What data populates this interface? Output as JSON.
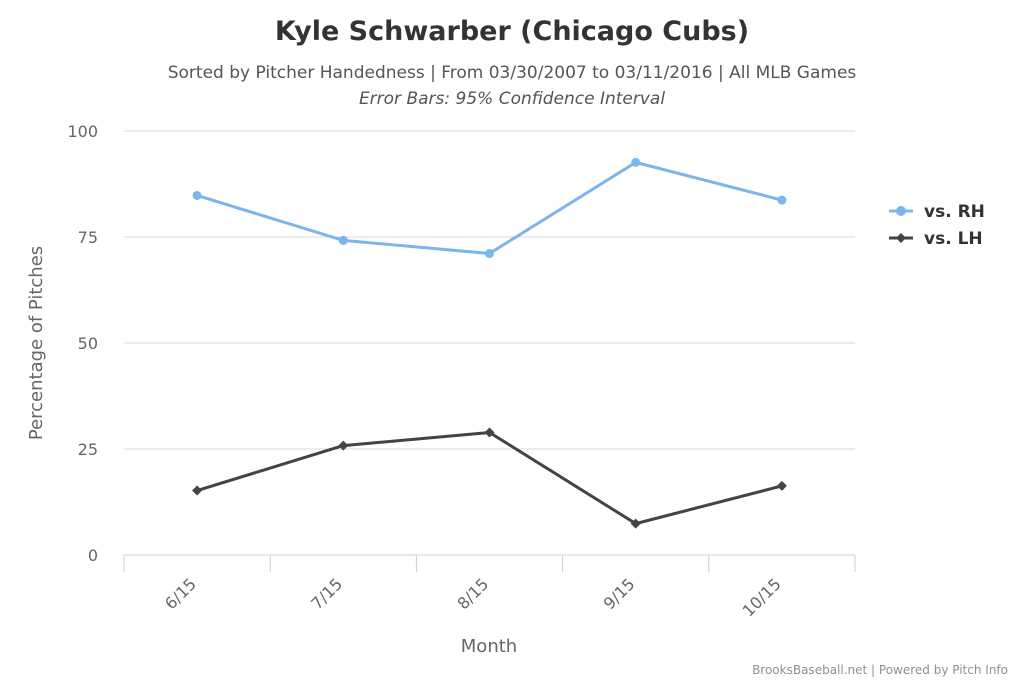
{
  "chart_data": {
    "type": "line",
    "title": "Kyle Schwarber (Chicago Cubs)",
    "subtitle": "Sorted by Pitcher Handedness | From 03/30/2007 to 03/11/2016 | All MLB Games",
    "subtitle2": "Error Bars: 95% Confidence Interval",
    "xlabel": "Month",
    "ylabel": "Percentage of Pitches",
    "categories": [
      "6/15",
      "7/15",
      "8/15",
      "9/15",
      "10/15"
    ],
    "ylim": [
      0,
      100
    ],
    "yticks": [
      0,
      25,
      50,
      75,
      100
    ],
    "grid": true,
    "legend_position": "right",
    "series": [
      {
        "name": "vs. RH",
        "color": "#7cb5ec",
        "marker": "circle",
        "values": [
          84.8,
          74.2,
          71.1,
          92.6,
          83.7
        ]
      },
      {
        "name": "vs. LH",
        "color": "#434348",
        "marker": "diamond",
        "values": [
          15.2,
          25.8,
          28.9,
          7.4,
          16.3
        ]
      }
    ]
  },
  "credits": "BrooksBaseball.net | Powered by Pitch Info"
}
